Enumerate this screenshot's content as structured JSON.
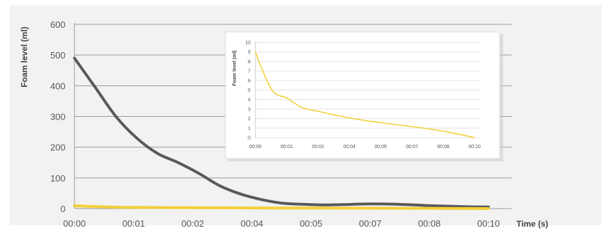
{
  "colors": {
    "background": "#f2f2f2",
    "grid": "#9a9a9a",
    "gray_series": "#595959",
    "yellow_series": "#f2d03a",
    "inset_background": "#ffffff",
    "inset_grid": "#e3e3e3"
  },
  "chart_data": [
    {
      "type": "line",
      "title": "",
      "xlabel": "Time (s)",
      "ylabel": "Foam level (ml)",
      "x_ticks": [
        "00:00",
        "00:01",
        "00:02",
        "00:04",
        "00:05",
        "00:07",
        "00:08",
        "00:10"
      ],
      "y_ticks": [
        "0",
        "100",
        "200",
        "300",
        "400",
        "500",
        "600"
      ],
      "ylim": [
        0,
        600
      ],
      "xlim": [
        0,
        10
      ],
      "grid": "horizontal",
      "series": [
        {
          "color": "#595959",
          "x": [
            0,
            0.5,
            1,
            1.5,
            2,
            2.5,
            3,
            3.5,
            4,
            4.5,
            5,
            5.5,
            6,
            6.5,
            7,
            7.5,
            8,
            8.5,
            9,
            9.5,
            10
          ],
          "y": [
            490,
            395,
            300,
            230,
            180,
            150,
            115,
            75,
            48,
            30,
            18,
            14,
            12,
            13,
            15,
            15,
            13,
            10,
            8,
            6,
            5
          ]
        },
        {
          "color": "#f2d03a",
          "x": [
            0,
            1,
            2,
            3,
            4,
            5,
            6,
            7,
            8,
            9,
            10
          ],
          "y": [
            9,
            4.5,
            3.5,
            2.8,
            2.2,
            1.8,
            1.5,
            1.3,
            1,
            0.5,
            0
          ]
        }
      ]
    },
    {
      "type": "line",
      "title": "",
      "inset": true,
      "xlabel": "",
      "ylabel": "Foam level (ml)",
      "x_ticks": [
        "00:00",
        "00:01",
        "00:02",
        "00:04",
        "00:05",
        "00:07",
        "00:08",
        "00:10"
      ],
      "y_ticks": [
        "0",
        "1",
        "2",
        "3",
        "4",
        "5",
        "6",
        "7",
        "8",
        "9",
        "10"
      ],
      "ylim": [
        0,
        10
      ],
      "xlim": [
        0,
        10
      ],
      "grid": "horizontal",
      "series": [
        {
          "color": "#f2d03a",
          "x": [
            0,
            0.3,
            0.7,
            1,
            1.4,
            1.8,
            2.2,
            3,
            4,
            5,
            6,
            7,
            8,
            9,
            10
          ],
          "y": [
            9,
            7.2,
            5.2,
            4.5,
            4.2,
            3.6,
            3.1,
            2.7,
            2.2,
            1.8,
            1.5,
            1.2,
            0.9,
            0.5,
            0
          ]
        }
      ]
    }
  ]
}
